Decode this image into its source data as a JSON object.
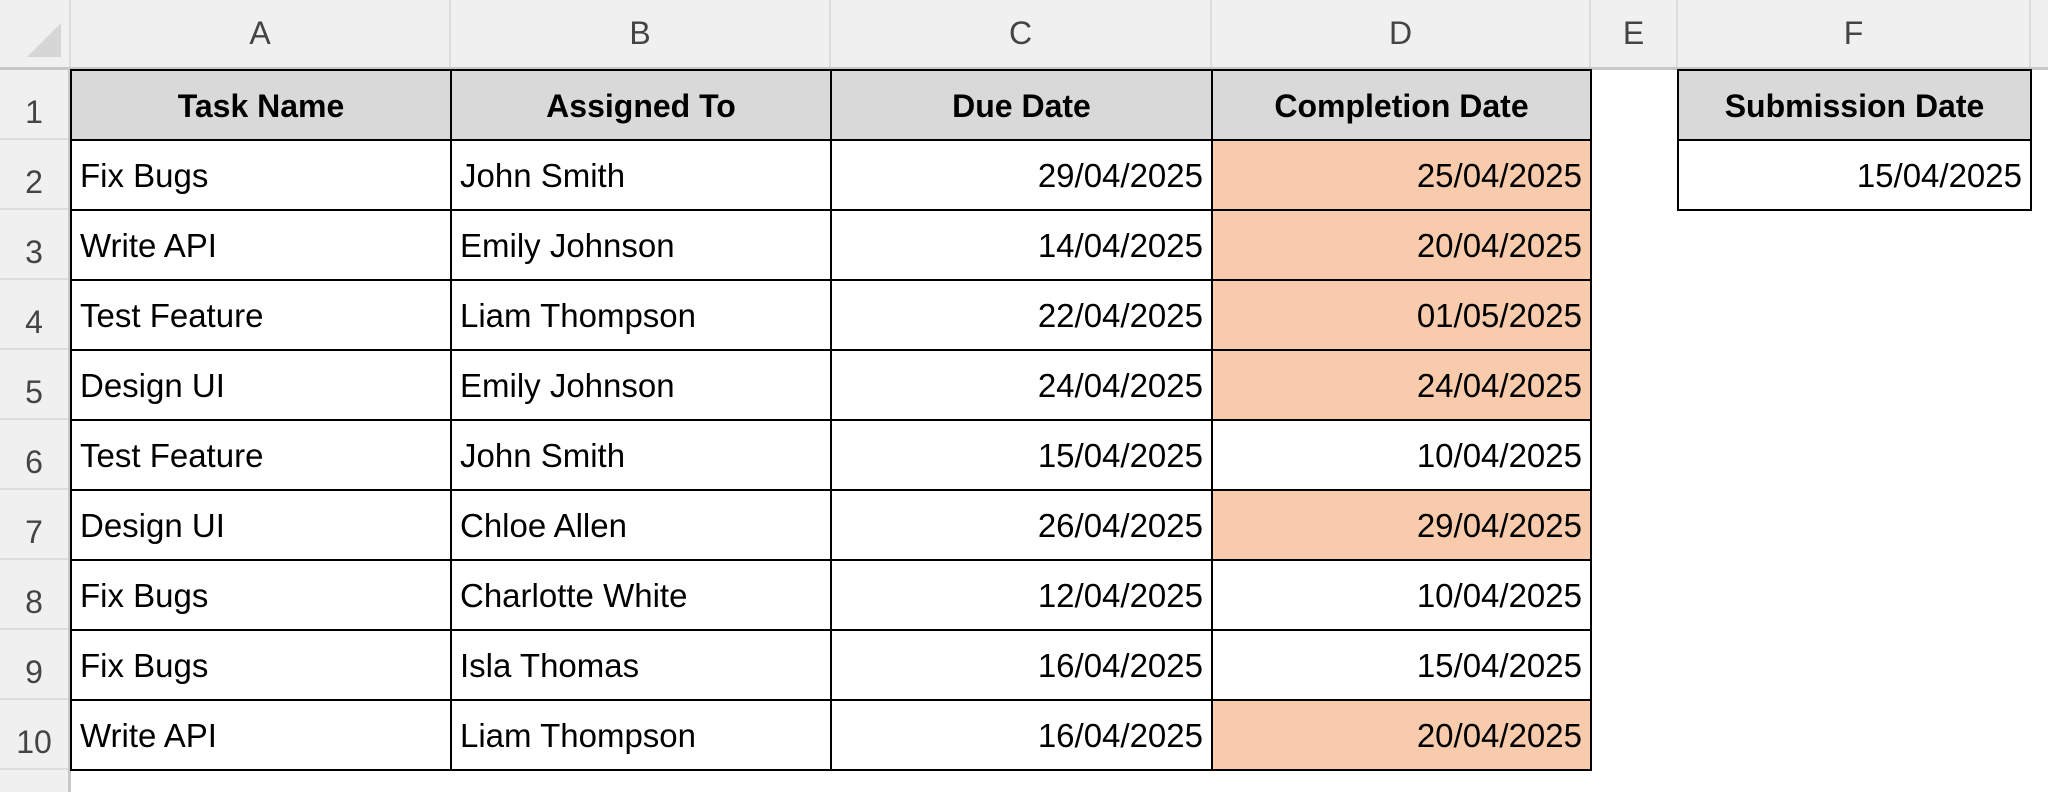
{
  "columns": [
    "A",
    "B",
    "C",
    "D",
    "E",
    "F"
  ],
  "rows": [
    "1",
    "2",
    "3",
    "4",
    "5",
    "6",
    "7",
    "8",
    "9",
    "10"
  ],
  "table": {
    "headers": [
      "Task Name",
      "Assigned To",
      "Due Date",
      "Completion Date"
    ],
    "records": [
      {
        "task": "Fix Bugs",
        "assigned": "John Smith",
        "due": "29/04/2025",
        "completion": "25/04/2025",
        "highlight": true
      },
      {
        "task": "Write API",
        "assigned": "Emily Johnson",
        "due": "14/04/2025",
        "completion": "20/04/2025",
        "highlight": true
      },
      {
        "task": "Test Feature",
        "assigned": "Liam Thompson",
        "due": "22/04/2025",
        "completion": "01/05/2025",
        "highlight": true
      },
      {
        "task": "Design UI",
        "assigned": "Emily Johnson",
        "due": "24/04/2025",
        "completion": "24/04/2025",
        "highlight": true
      },
      {
        "task": "Test Feature",
        "assigned": "John Smith",
        "due": "15/04/2025",
        "completion": "10/04/2025",
        "highlight": false
      },
      {
        "task": "Design UI",
        "assigned": "Chloe Allen",
        "due": "26/04/2025",
        "completion": "29/04/2025",
        "highlight": true
      },
      {
        "task": "Fix Bugs",
        "assigned": "Charlotte White",
        "due": "12/04/2025",
        "completion": "10/04/2025",
        "highlight": false
      },
      {
        "task": "Fix Bugs",
        "assigned": "Isla Thomas",
        "due": "16/04/2025",
        "completion": "15/04/2025",
        "highlight": false
      },
      {
        "task": "Write API",
        "assigned": "Liam Thompson",
        "due": "16/04/2025",
        "completion": "20/04/2025",
        "highlight": true
      }
    ]
  },
  "submission": {
    "header": "Submission Date",
    "value": "15/04/2025"
  },
  "colors": {
    "header_fill": "#d9d9d9",
    "highlight_fill": "#f8cbad",
    "grid_header": "#f0f0f0"
  }
}
